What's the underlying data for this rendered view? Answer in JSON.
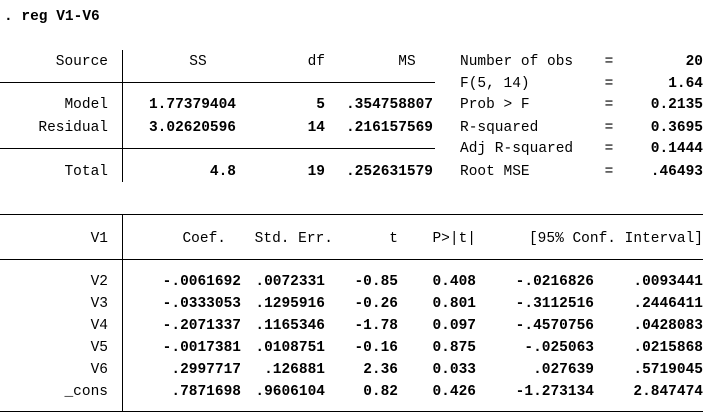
{
  "command": ". reg V1-V6",
  "anova": {
    "header": [
      "Source",
      "SS",
      "df",
      "MS"
    ],
    "rows": [
      [
        "Model",
        "1.77379404",
        "5",
        ".354758807"
      ],
      [
        "Residual",
        "3.02620596",
        "14",
        ".216157569"
      ],
      [
        "Total",
        "4.8",
        "19",
        ".252631579"
      ]
    ]
  },
  "stats": [
    {
      "label": "Number of obs",
      "sign": "=",
      "value": "20"
    },
    {
      "label": "F(5, 14)",
      "sign": "=",
      "value": "1.64"
    },
    {
      "label": "Prob > F",
      "sign": "=",
      "value": "0.2135"
    },
    {
      "label": "R-squared",
      "sign": "=",
      "value": "0.3695"
    },
    {
      "label": "Adj R-squared",
      "sign": "=",
      "value": "0.1444"
    },
    {
      "label": "Root MSE",
      "sign": "=",
      "value": ".46493"
    }
  ],
  "coefficients": {
    "header": [
      "V1",
      "Coef.",
      "Std. Err.",
      "t",
      "P>|t|",
      "[95% Conf. Interval]"
    ],
    "rows": [
      [
        "V2",
        "-.0061692",
        ".0072331",
        "-0.85",
        "0.408",
        "-.0216826",
        ".0093441"
      ],
      [
        "V3",
        "-.0333053",
        ".1295916",
        "-0.26",
        "0.801",
        "-.3112516",
        ".2446411"
      ],
      [
        "V4",
        "-.2071337",
        ".1165346",
        "-1.78",
        "0.097",
        "-.4570756",
        ".0428083"
      ],
      [
        "V5",
        "-.0017381",
        ".0108751",
        "-0.16",
        "0.875",
        "-.025063",
        ".0215868"
      ],
      [
        "V6",
        ".2997717",
        ".126881",
        "2.36",
        "0.033",
        ".027639",
        ".5719045"
      ],
      [
        "_cons",
        ".7871698",
        ".9606104",
        "0.82",
        "0.426",
        "-1.273134",
        "2.847474"
      ]
    ]
  }
}
